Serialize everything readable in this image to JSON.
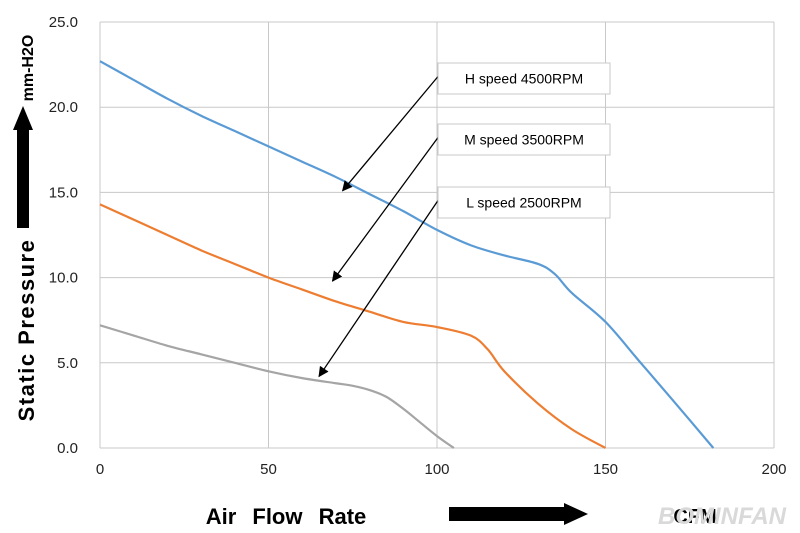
{
  "chart_data": {
    "type": "line",
    "xlim": [
      0,
      200
    ],
    "ylim": [
      0,
      25
    ],
    "x_ticks": [
      "0",
      "50",
      "100",
      "150",
      "200"
    ],
    "y_ticks": [
      "0.0",
      "5.0",
      "10.0",
      "15.0",
      "20.0",
      "25.0"
    ],
    "grid": true,
    "xlabel": "Air Flow Rate",
    "x_unit": "CFM",
    "ylabel": "Static Pressure",
    "y_unit": "mm-H2O",
    "series": [
      {
        "name": "H speed 4500RPM",
        "color": "#5b9bd5",
        "points": [
          [
            0,
            22.7
          ],
          [
            10,
            21.6
          ],
          [
            20,
            20.5
          ],
          [
            30,
            19.5
          ],
          [
            40,
            18.6
          ],
          [
            50,
            17.7
          ],
          [
            60,
            16.8
          ],
          [
            70,
            15.9
          ],
          [
            80,
            14.9
          ],
          [
            90,
            13.9
          ],
          [
            100,
            12.8
          ],
          [
            110,
            11.9
          ],
          [
            120,
            11.3
          ],
          [
            130,
            10.8
          ],
          [
            135,
            10.2
          ],
          [
            140,
            9.1
          ],
          [
            150,
            7.4
          ],
          [
            160,
            5.1
          ],
          [
            170,
            2.8
          ],
          [
            182,
            0.0
          ]
        ]
      },
      {
        "name": "M speed 3500RPM",
        "color": "#ed7d31",
        "points": [
          [
            0,
            14.3
          ],
          [
            10,
            13.4
          ],
          [
            20,
            12.5
          ],
          [
            30,
            11.6
          ],
          [
            40,
            10.8
          ],
          [
            50,
            10.0
          ],
          [
            60,
            9.3
          ],
          [
            70,
            8.6
          ],
          [
            80,
            8.0
          ],
          [
            90,
            7.4
          ],
          [
            100,
            7.1
          ],
          [
            110,
            6.6
          ],
          [
            115,
            5.8
          ],
          [
            120,
            4.5
          ],
          [
            130,
            2.6
          ],
          [
            140,
            1.1
          ],
          [
            150,
            0.0
          ]
        ]
      },
      {
        "name": "L speed 2500RPM",
        "color": "#a5a5a5",
        "points": [
          [
            0,
            7.2
          ],
          [
            10,
            6.6
          ],
          [
            20,
            6.0
          ],
          [
            30,
            5.5
          ],
          [
            40,
            5.0
          ],
          [
            50,
            4.5
          ],
          [
            60,
            4.1
          ],
          [
            70,
            3.8
          ],
          [
            75,
            3.65
          ],
          [
            80,
            3.4
          ],
          [
            85,
            3.0
          ],
          [
            90,
            2.3
          ],
          [
            95,
            1.5
          ],
          [
            100,
            0.7
          ],
          [
            105,
            0.0
          ]
        ]
      }
    ],
    "annotations": [
      {
        "label": "H speed  4500RPM",
        "arrow_to": [
          72,
          15.1
        ]
      },
      {
        "label": "M speed  3500RPM",
        "arrow_to": [
          69,
          9.8
        ]
      },
      {
        "label": "L speed  2500RPM",
        "arrow_to": [
          65,
          4.2
        ]
      }
    ]
  },
  "watermark": "BOMINFAN"
}
